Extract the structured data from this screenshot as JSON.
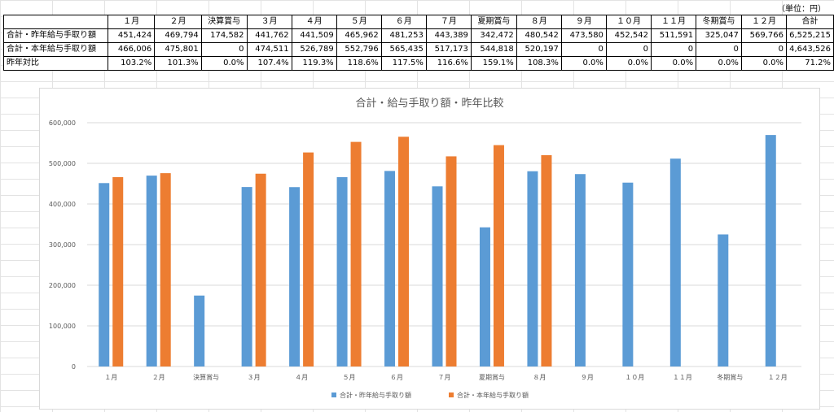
{
  "unit_label": "（単位：円）",
  "table": {
    "headers": [
      "",
      "１月",
      "２月",
      "決算賞与",
      "３月",
      "４月",
      "５月",
      "６月",
      "７月",
      "夏期賞与",
      "８月",
      "９月",
      "１０月",
      "１１月",
      "冬期賞与",
      "１２月",
      "合計"
    ],
    "rows": [
      {
        "label": "合計・昨年給与手取り額",
        "cells": [
          "451,424",
          "469,794",
          "174,582",
          "441,762",
          "441,509",
          "465,962",
          "481,253",
          "443,389",
          "342,472",
          "480,542",
          "473,580",
          "452,542",
          "511,591",
          "325,047",
          "569,766",
          "6,525,215"
        ]
      },
      {
        "label": "合計・本年給与手取り額",
        "cells": [
          "466,006",
          "475,801",
          "0",
          "474,511",
          "526,789",
          "552,796",
          "565,435",
          "517,173",
          "544,818",
          "520,197",
          "0",
          "0",
          "0",
          "0",
          "0",
          "4,643,526"
        ]
      },
      {
        "label": "昨年対比",
        "cells": [
          "103.2%",
          "101.3%",
          "0.0%",
          "107.4%",
          "119.3%",
          "118.6%",
          "117.5%",
          "116.6%",
          "159.1%",
          "108.3%",
          "0.0%",
          "0.0%",
          "0.0%",
          "0.0%",
          "0.0%",
          "71.2%"
        ]
      }
    ]
  },
  "chart_data": {
    "type": "bar",
    "title": "合計・給与手取り額・昨年比較",
    "categories": [
      "１月",
      "２月",
      "決算賞与",
      "３月",
      "４月",
      "５月",
      "６月",
      "７月",
      "夏期賞与",
      "８月",
      "９月",
      "１０月",
      "１１月",
      "冬期賞与",
      "１２月"
    ],
    "series": [
      {
        "name": "合計・昨年給与手取り額",
        "color": "#5B9BD5",
        "values": [
          451424,
          469794,
          174582,
          441762,
          441509,
          465962,
          481253,
          443389,
          342472,
          480542,
          473580,
          452542,
          511591,
          325047,
          569766
        ]
      },
      {
        "name": "合計・本年給与手取り額",
        "color": "#ED7D31",
        "values": [
          466006,
          475801,
          0,
          474511,
          526789,
          552796,
          565435,
          517173,
          544818,
          520197,
          0,
          0,
          0,
          0,
          0
        ]
      }
    ],
    "ylim": [
      0,
      600000
    ],
    "yticks": [
      0,
      100000,
      200000,
      300000,
      400000,
      500000,
      600000
    ],
    "ytick_labels": [
      "0",
      "100,000",
      "200,000",
      "300,000",
      "400,000",
      "500,000",
      "600,000"
    ],
    "grid": true,
    "legend_position": "bottom"
  }
}
